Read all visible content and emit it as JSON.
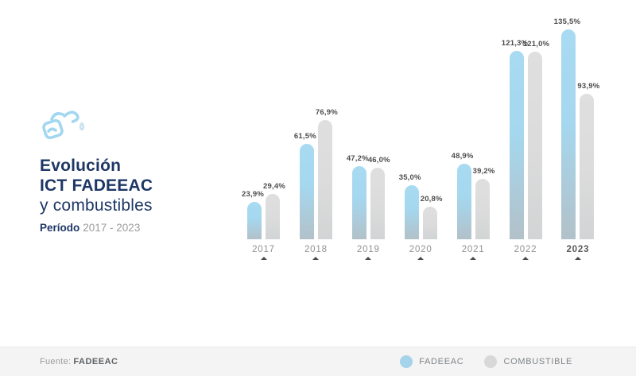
{
  "header": {
    "icon": "fuel-nozzle-icon",
    "title_line1": "Evolución",
    "title_line2": "ICT FADEEAC",
    "title_line3": "y combustibles",
    "period_label": "Período",
    "period_value": "2017 - 2023"
  },
  "chart_data": {
    "type": "bar",
    "title": "Evolución ICT FADEEAC y combustibles",
    "categories": [
      "2017",
      "2018",
      "2019",
      "2020",
      "2021",
      "2022",
      "2023"
    ],
    "series": [
      {
        "name": "FADEEAC",
        "color": "#a8dbf2",
        "color_bottom": "#b2c1c9",
        "values": [
          23.9,
          61.5,
          47.2,
          35.0,
          48.9,
          121.3,
          135.5
        ],
        "labels": [
          "23,9%",
          "61,5%",
          "47,2%",
          "35,0%",
          "48,9%",
          "121,3%",
          "135,5%"
        ]
      },
      {
        "name": "COMBUSTIBLE",
        "color": "#dcdcdc",
        "color_bottom": "#d2d4d5",
        "values": [
          29.4,
          76.9,
          46.0,
          20.8,
          39.2,
          121.0,
          93.9
        ],
        "labels": [
          "29,4%",
          "76,9%",
          "46,0%",
          "20,8%",
          "39,2%",
          "121,0%",
          "93,9%"
        ]
      }
    ],
    "value_suffix": "%",
    "decimal_separator": ",",
    "ylim": [
      0,
      140
    ],
    "grid": false,
    "axis_lines": false,
    "data_labels": true,
    "bold_category": "2023",
    "category_marker": "arrow-up-marker",
    "legend_position": "bottom-right"
  },
  "legend": {
    "items": [
      {
        "label": "FADEEAC",
        "color": "#a5d3ea"
      },
      {
        "label": "COMBUSTIBLE",
        "color": "#d8d8d8"
      }
    ]
  },
  "footer": {
    "source_label": "Fuente:",
    "source_value": "FADEEAC"
  },
  "colors": {
    "title_navy": "#1e3765",
    "bar_blue_top": "#a8dbf2",
    "bar_blue_bottom": "#b2c1c9",
    "bar_gray_top": "#dedede",
    "bar_gray_bottom": "#d2d4d5",
    "value_label": "#4d4d4d",
    "year_label": "#8f9193",
    "footer_bg": "#f4f4f4"
  }
}
